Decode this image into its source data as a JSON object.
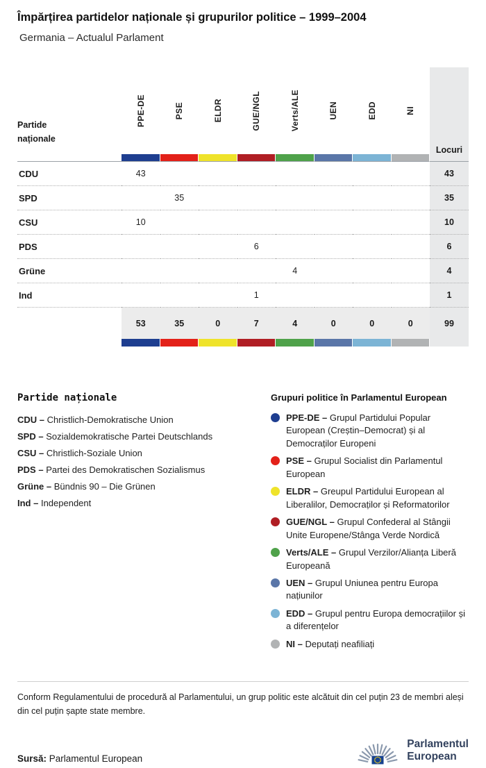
{
  "header": {
    "title": "Împărțirea partidelor naționale și grupurilor politice – 1999–2004",
    "subtitle": "Germania – Actualul Parlament"
  },
  "table": {
    "corner_label_line1": "Partide",
    "corner_label_line2": "naționale",
    "seats_label": "Locuri"
  },
  "chart_data": {
    "type": "table",
    "title": "Împărțirea partidelor naționale și grupurilor politice – 1999–2004",
    "subtitle": "Germania – Actualul Parlament",
    "groups": [
      {
        "id": "PPE-DE",
        "color": "#1e3e90"
      },
      {
        "id": "PSE",
        "color": "#e32119"
      },
      {
        "id": "ELDR",
        "color": "#efe32a"
      },
      {
        "id": "GUE/NGL",
        "color": "#b01e24"
      },
      {
        "id": "Verts/ALE",
        "color": "#4fa24a"
      },
      {
        "id": "UEN",
        "color": "#5a76a8"
      },
      {
        "id": "EDD",
        "color": "#7cb4d5"
      },
      {
        "id": "NI",
        "color": "#b1b3b4"
      }
    ],
    "rows": [
      {
        "party": "CDU",
        "values": [
          "43",
          "",
          "",
          "",
          "",
          "",
          "",
          ""
        ],
        "seats": "43"
      },
      {
        "party": "SPD",
        "values": [
          "",
          "35",
          "",
          "",
          "",
          "",
          "",
          ""
        ],
        "seats": "35"
      },
      {
        "party": "CSU",
        "values": [
          "10",
          "",
          "",
          "",
          "",
          "",
          "",
          ""
        ],
        "seats": "10"
      },
      {
        "party": "PDS",
        "values": [
          "",
          "",
          "",
          "6",
          "",
          "",
          "",
          ""
        ],
        "seats": "6"
      },
      {
        "party": "Grüne",
        "values": [
          "",
          "",
          "",
          "",
          "4",
          "",
          "",
          ""
        ],
        "seats": "4"
      },
      {
        "party": "Ind",
        "values": [
          "",
          "",
          "",
          "1",
          "",
          "",
          "",
          ""
        ],
        "seats": "1"
      }
    ],
    "totals": {
      "values": [
        "53",
        "35",
        "0",
        "7",
        "4",
        "0",
        "0",
        "0"
      ],
      "seats": "99"
    }
  },
  "legend_parties": {
    "title": "Partide naționale",
    "items": [
      {
        "abbr": "CDU –",
        "name": "Christlich-Demokratische Union"
      },
      {
        "abbr": "SPD –",
        "name": "Sozialdemokratische Partei Deutschlands"
      },
      {
        "abbr": "CSU –",
        "name": "Christlich-Soziale Union"
      },
      {
        "abbr": "PDS –",
        "name": "Partei des Demokratischen Sozialismus"
      },
      {
        "abbr": "Grüne –",
        "name": "Bündnis 90 – Die Grünen"
      },
      {
        "abbr": "Ind –",
        "name": "Independent"
      }
    ]
  },
  "legend_groups": {
    "title": "Grupuri politice în Parlamentul European",
    "items": [
      {
        "abbr": "PPE-DE –",
        "color": "#1e3e90",
        "name": "Grupul Partidului Popular European (Creștin–Democrat) și al Democraților Europeni"
      },
      {
        "abbr": "PSE –",
        "color": "#e32119",
        "name": "Grupul Socialist din Parlamentul European"
      },
      {
        "abbr": "ELDR –",
        "color": "#efe32a",
        "name": "Greupul Partidului European al Liberalilor, Democraților și Reformatorilor"
      },
      {
        "abbr": "GUE/NGL –",
        "color": "#b01e24",
        "name": "Grupul Confederal al Stângii Unite Europene/Stânga Verde Nordică"
      },
      {
        "abbr": "Verts/ALE –",
        "color": "#4fa24a",
        "name": "Grupul Verzilor/Alianța Liberă Europeană"
      },
      {
        "abbr": "UEN –",
        "color": "#5a76a8",
        "name": "Grupul Uniunea pentru Europa națiunilor"
      },
      {
        "abbr": "EDD –",
        "color": "#7cb4d5",
        "name": "Grupul pentru Europa democrațiilor și a diferențelor"
      },
      {
        "abbr": "NI –",
        "color": "#b1b3b4",
        "name": "Deputați neafiliați"
      }
    ]
  },
  "footer": {
    "note": "Conform Regulamentului de procedură al Parlamentului, un grup politic este alcătuit din cel puțin 23 de membri aleși din cel puțin șapte state membre.",
    "source_label": "Sursă:",
    "source_value": " Parlamentul European",
    "logo_line1": "Parlamentul",
    "logo_line2": "European"
  }
}
